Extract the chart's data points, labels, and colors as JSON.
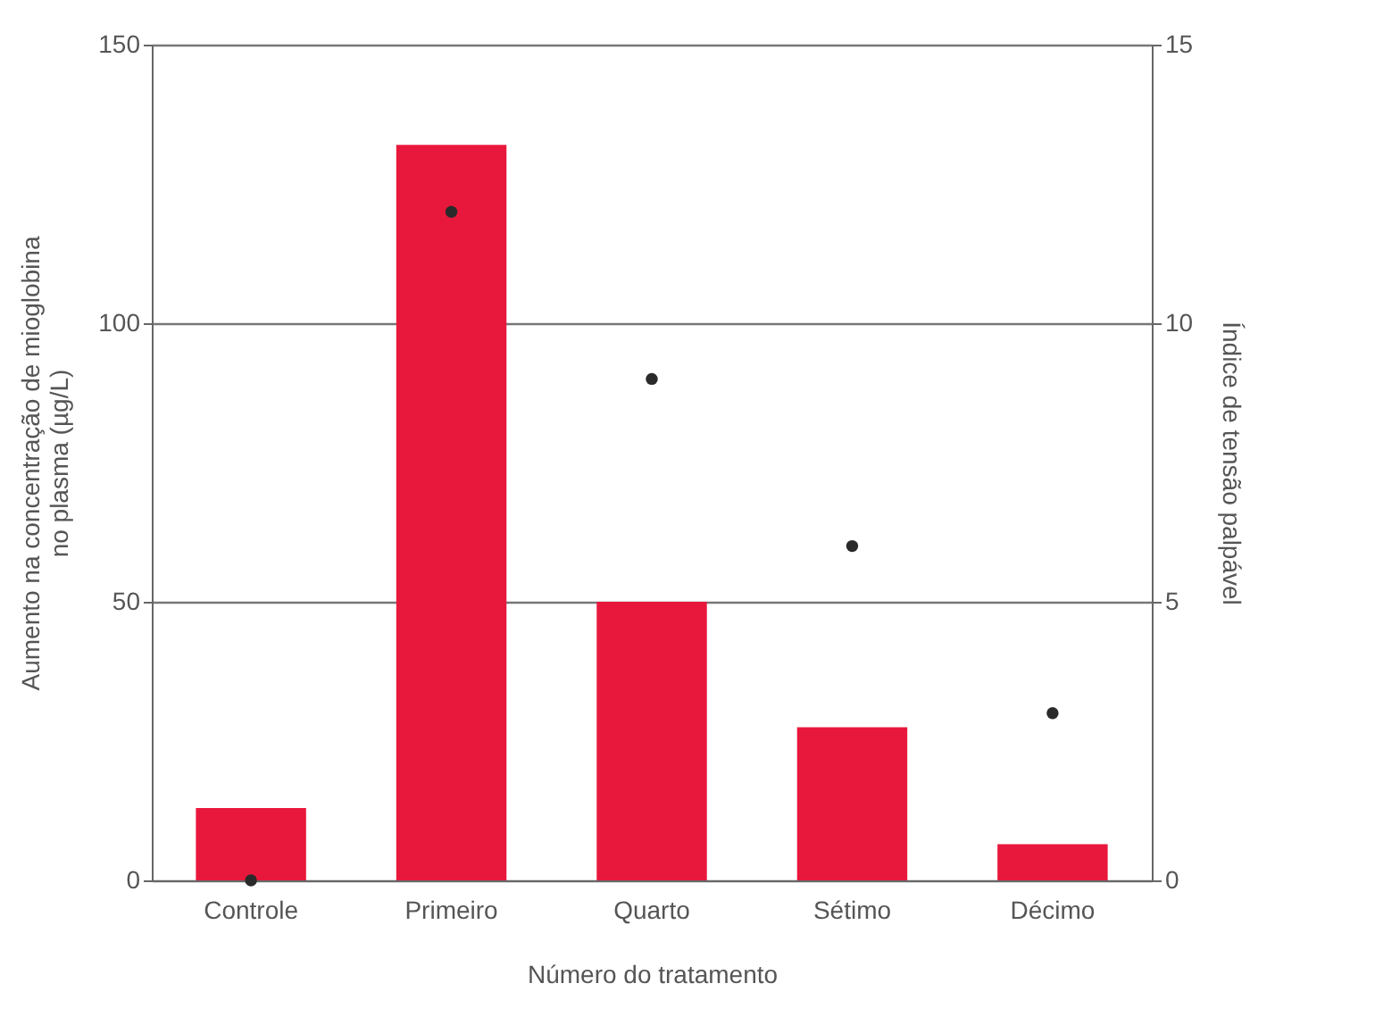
{
  "chart_data": {
    "type": "bar",
    "xlabel": "Número do tratamento",
    "ylabel": "Aumento na concentração de mioglobina\nno plasma (µg/L)",
    "y2label": "Índice de tensão palpável",
    "categories": [
      "Controle",
      "Primeiro",
      "Quarto",
      "Sétimo",
      "Décimo"
    ],
    "series": [
      {
        "color": "#e8183c",
        "values": [
          13,
          132,
          50,
          27.5,
          6.5
        ]
      },
      {
        "type": "scatter",
        "axis": "y2",
        "color": "#2a2a2a",
        "x": [
          "Controle",
          "Primeiro",
          "Quarto",
          "Sétimo",
          "Décimo"
        ],
        "values": [
          0,
          12,
          9,
          6,
          3
        ]
      }
    ],
    "ylim": [
      0,
      150
    ],
    "yticks": [
      0,
      50,
      100,
      150
    ],
    "y2lim": [
      0,
      15
    ],
    "y2ticks": [
      0,
      5,
      10,
      15
    ],
    "grid": "y",
    "marker": "circle"
  }
}
